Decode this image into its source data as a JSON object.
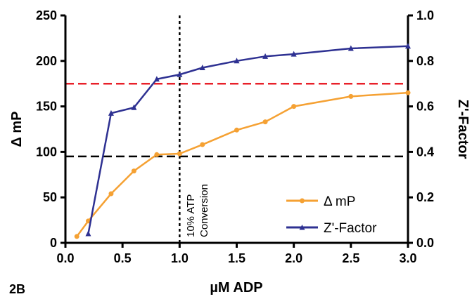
{
  "chart_data": {
    "type": "line",
    "panel_label": "2B",
    "xlabel": "µM ADP",
    "ylabel_left": "Δ mP",
    "ylabel_right": "Z'-Factor",
    "xlim": [
      0,
      3.0
    ],
    "ylim_left": [
      0,
      250
    ],
    "ylim_right": [
      0,
      1.0
    ],
    "xticks": [
      "0.0",
      "0.5",
      "1.0",
      "1.5",
      "2.0",
      "2.5",
      "3.0"
    ],
    "yticks_left": [
      "0",
      "50",
      "100",
      "150",
      "200",
      "250"
    ],
    "yticks_right": [
      "0.0",
      "0.2",
      "0.4",
      "0.6",
      "0.8",
      "1.0"
    ],
    "series": [
      {
        "name": "Δ mP",
        "axis": "left",
        "color": "#F5A133",
        "marker": "circle",
        "x": [
          0.1,
          0.2,
          0.4,
          0.6,
          0.8,
          1.0,
          1.2,
          1.5,
          1.75,
          2.0,
          2.5,
          3.0
        ],
        "y": [
          7,
          24,
          54,
          79,
          97,
          98,
          108,
          124,
          133,
          150,
          161,
          165
        ]
      },
      {
        "name": "Z'-Factor",
        "axis": "right",
        "color": "#2E3192",
        "marker": "triangle",
        "x": [
          0.2,
          0.4,
          0.6,
          0.8,
          1.0,
          1.2,
          1.5,
          1.75,
          2.0,
          2.5,
          3.0
        ],
        "y": [
          0.04,
          0.57,
          0.595,
          0.72,
          0.74,
          0.77,
          0.8,
          0.82,
          0.83,
          0.855,
          0.865
        ]
      }
    ],
    "reference_lines": [
      {
        "orientation": "horizontal",
        "axis": "left",
        "value": 175,
        "color": "#E8202A",
        "style": "dashed"
      },
      {
        "orientation": "horizontal",
        "axis": "left",
        "value": 95,
        "color": "#000000",
        "style": "dashed"
      },
      {
        "orientation": "vertical",
        "value": 1.0,
        "color": "#000000",
        "style": "dotted"
      }
    ],
    "annotation": [
      "10% ATP",
      "Conversion"
    ],
    "legend_position": "bottom-right",
    "grid": false
  }
}
